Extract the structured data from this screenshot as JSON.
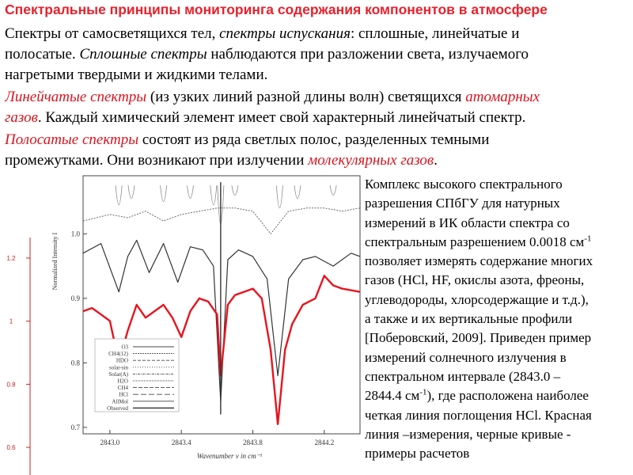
{
  "slide": {
    "title": "Спектральные принципы мониторинга содержания компонентов в атмосфере",
    "p1": {
      "a": "Спектры от самосветящихся тел, ",
      "b": "спектры испускания",
      "c": ": сплошные, линейчатые и",
      "d": "полосатые. ",
      "e": "Сплошные спектры",
      "f": " наблюдаются при разложении света, излучаемого",
      "g": "нагретыми твердыми и жидкими телами."
    },
    "p2": {
      "a": "Линейчатые спектры",
      "b": " (из узких линий разной длины волн) светящихся ",
      "c": "атомарных",
      "d": "газов",
      "e": ". Каждый химический элемент имеет свой характерный линейчатый спектр."
    },
    "p3": {
      "a": "Полосатые спектры",
      "b": " состоят из ряда светлых полос, разделенных темными",
      "c": "промежутками. Они возникают при излучении ",
      "d": "молекулярных газов",
      "e": "."
    },
    "side": {
      "l1": "Комплекс высокого спектрального",
      "l2": "разрешения СПбГУ для натурных",
      "l3": "измерений в ИК области спектра со",
      "l4": "спектральным разрешением 0.0018 см",
      "l4sup": "-1",
      "l5": "позволяет измерять содержание многих",
      "l6": "газов (HCl, HF, окислы азота, фреоны,",
      "l7": "углеводороды, хлорсодержащие и т.д.),",
      "l8": "а также и их вертикальные профили",
      "l9": "[Поберовский, 2009]. Приведен пример",
      "l10": "измерений солнечного излучения в",
      "l11": "спектральном интервале (2843.0 –",
      "l12a": "2844.4 см",
      "l12sup": "-1",
      "l12b": "), где расположена наиболее",
      "l13": "четкая линия поглощения HCl. Красная",
      "l14": "линия –измерения, черные кривые -",
      "l15": "примеры расчетов"
    }
  },
  "chart_data": {
    "type": "line",
    "xlabel": "Wavenumber ν in cm⁻¹",
    "ylabel": "Normalized Intensity I",
    "xlim": [
      2842.85,
      2844.4
    ],
    "ylim": [
      0.69,
      1.09
    ],
    "xticks": [
      2843.0,
      2843.4,
      2843.8,
      2844.2
    ],
    "xtick_labels": [
      "2843.0",
      "2843.4",
      "2843.8",
      "2844.2"
    ],
    "yticks": [
      0.7,
      0.8,
      0.9,
      1.0
    ],
    "ytick_labels": [
      "0.7",
      "0.8",
      "0.9",
      "1.0"
    ],
    "outer_ylim": [
      0.55,
      1.22
    ],
    "outer_yticks": [
      0.6,
      0.8,
      1.0,
      1.2
    ],
    "outer_ytick_labels": [
      "0.6",
      "0.8",
      "1",
      "1.2"
    ],
    "legend": {
      "placement": "lower-left",
      "entries": [
        "O3",
        "CH4(12)",
        "HDO",
        "solar-sin",
        "Solar(A)",
        "H2O",
        "CH4",
        "HCl",
        "AllMol",
        "Observed"
      ]
    },
    "colors": {
      "observed": "#e8141e",
      "model": "#333333",
      "transmittance": "#6a6a6a",
      "top_lines": "#888888",
      "axis": "#444444",
      "outer_axis": "#cc2222"
    },
    "series": [
      {
        "key": "transmittance",
        "x": [
          2842.85,
          2843.0,
          2843.1,
          2843.2,
          2843.3,
          2843.4,
          2843.5,
          2843.6,
          2843.7,
          2843.8,
          2843.9,
          2844.0,
          2844.1,
          2844.2,
          2844.3,
          2844.4
        ],
        "y": [
          1.02,
          1.03,
          1.025,
          1.035,
          1.02,
          1.03,
          1.035,
          1.04,
          1.04,
          1.035,
          1.0,
          1.035,
          1.04,
          1.04,
          1.035,
          1.04
        ]
      },
      {
        "key": "model",
        "x": [
          2842.85,
          2842.95,
          2843.05,
          2843.1,
          2843.15,
          2843.22,
          2843.3,
          2843.38,
          2843.45,
          2843.52,
          2843.58,
          2843.62,
          2843.66,
          2843.72,
          2843.8,
          2843.88,
          2843.94,
          2844.0,
          2844.08,
          2844.15,
          2844.25,
          2844.35,
          2844.4
        ],
        "y": [
          0.97,
          0.985,
          0.91,
          0.965,
          0.99,
          0.94,
          0.985,
          0.925,
          0.98,
          0.975,
          0.95,
          0.74,
          0.96,
          0.975,
          0.965,
          0.93,
          0.78,
          0.93,
          0.96,
          0.965,
          0.95,
          0.97,
          0.965
        ]
      },
      {
        "key": "observed",
        "x": [
          2842.85,
          2842.9,
          2842.95,
          2843.0,
          2843.05,
          2843.1,
          2843.15,
          2843.2,
          2843.25,
          2843.3,
          2843.35,
          2843.4,
          2843.45,
          2843.5,
          2843.55,
          2843.6,
          2843.62,
          2843.66,
          2843.7,
          2843.75,
          2843.8,
          2843.85,
          2843.9,
          2843.94,
          2843.98,
          2844.02,
          2844.08,
          2844.15,
          2844.2,
          2844.25,
          2844.3,
          2844.4
        ],
        "y": [
          0.88,
          0.885,
          0.875,
          0.865,
          0.8,
          0.85,
          0.89,
          0.87,
          0.88,
          0.89,
          0.87,
          0.84,
          0.88,
          0.9,
          0.895,
          0.875,
          0.78,
          0.89,
          0.905,
          0.91,
          0.915,
          0.9,
          0.82,
          0.705,
          0.82,
          0.86,
          0.89,
          0.9,
          0.935,
          0.92,
          0.915,
          0.91
        ]
      }
    ]
  }
}
